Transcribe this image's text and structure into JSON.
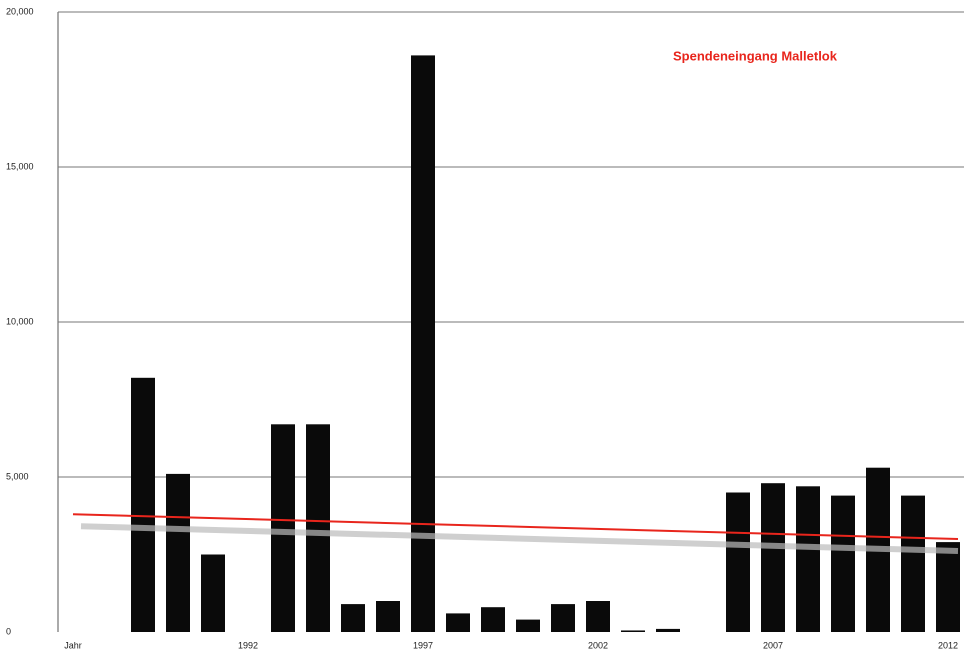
{
  "chart_data": {
    "type": "bar",
    "title": "Spendeneingang Malletlok",
    "title_color": "#e8251c",
    "categories": [
      "Jahr",
      null,
      null,
      null,
      null,
      "1992",
      null,
      null,
      null,
      null,
      "1997",
      null,
      null,
      null,
      null,
      "2002",
      null,
      null,
      null,
      null,
      "2007",
      null,
      null,
      null,
      null,
      "2012"
    ],
    "values": [
      null,
      null,
      8200,
      5100,
      2500,
      null,
      6700,
      6700,
      900,
      1000,
      18600,
      600,
      800,
      400,
      900,
      1000,
      50,
      100,
      null,
      4500,
      4800,
      4700,
      4400,
      5300,
      4400,
      2900
    ],
    "color": "#0a0a0a",
    "trend": {
      "color": "#e8251c",
      "values": [
        3800,
        3000
      ]
    },
    "ylim": [
      0,
      20000
    ],
    "yticks": [
      0,
      {
        "value": 5000,
        "label": "5,000"
      },
      {
        "value": 10000,
        "label": "10,000"
      },
      {
        "value": 15000,
        "label": "15,000"
      },
      {
        "value": 20000,
        "label": "20,000"
      }
    ],
    "grid": true
  }
}
